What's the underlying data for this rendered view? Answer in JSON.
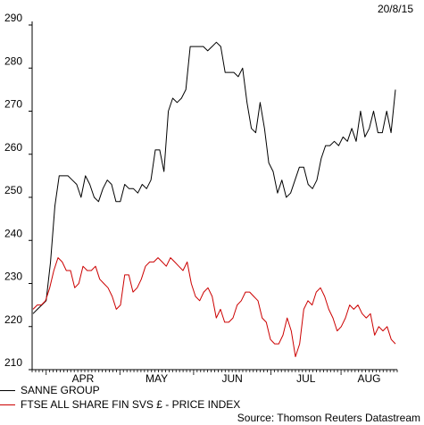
{
  "date": "20/8/15",
  "source": "Source: Thomson Reuters Datastream",
  "chart_data": {
    "type": "line",
    "title": "",
    "xlabel": "",
    "ylabel": "",
    "x_unit": "trading day",
    "ylim": [
      210,
      290
    ],
    "yticks": [
      210,
      220,
      230,
      240,
      250,
      260,
      270,
      280,
      290
    ],
    "months": [
      {
        "label": "APR",
        "start": 4
      },
      {
        "label": "MAY",
        "start": 25
      },
      {
        "label": "JUN",
        "start": 46
      },
      {
        "label": "JUL",
        "start": 68
      },
      {
        "label": "AUG",
        "start": 88
      }
    ],
    "x_end": 104,
    "grid": false,
    "legend_position": "bottom-left",
    "series": [
      {
        "name": "SANNE GROUP",
        "color": "#000000",
        "values": [
          223,
          224,
          225,
          226,
          235,
          248,
          255,
          255,
          255,
          254,
          253,
          250,
          255,
          253,
          250,
          249,
          252,
          254,
          253,
          249,
          249,
          253,
          252,
          252,
          251,
          253,
          252,
          254,
          261,
          261,
          256,
          270,
          273,
          272,
          273,
          275,
          285,
          285,
          285,
          285,
          284,
          285,
          286,
          285,
          279,
          279,
          279,
          278,
          280,
          272,
          266,
          265,
          272,
          266,
          258,
          256,
          251,
          254,
          250,
          251,
          254,
          257,
          257,
          253,
          252,
          254,
          259,
          262,
          262,
          263,
          262,
          264,
          263,
          266,
          263,
          270,
          264,
          266,
          270,
          265,
          265,
          270,
          265,
          275
        ]
      },
      {
        "name": "FTSE ALL SHARE FIN SVS £ - PRICE INDEX",
        "color": "#cc0000",
        "values": [
          224,
          225,
          225,
          226,
          229,
          233,
          236,
          235,
          233,
          233,
          229,
          230,
          234,
          233,
          233,
          234,
          231,
          230,
          229,
          227,
          224,
          225,
          232,
          232,
          228,
          229,
          231,
          234,
          235,
          235,
          236,
          235,
          234,
          236,
          235,
          234,
          233,
          235,
          230,
          227,
          226,
          228,
          229,
          227,
          222,
          224,
          221,
          221,
          222,
          225,
          226,
          228,
          228,
          227,
          226,
          222,
          221,
          217,
          216,
          216,
          218,
          222,
          219,
          213,
          216,
          224,
          226,
          225,
          228,
          229,
          227,
          224,
          222,
          219,
          220,
          222,
          225,
          224,
          225,
          223,
          222,
          223,
          218,
          220,
          219,
          220,
          217,
          216
        ]
      }
    ]
  }
}
